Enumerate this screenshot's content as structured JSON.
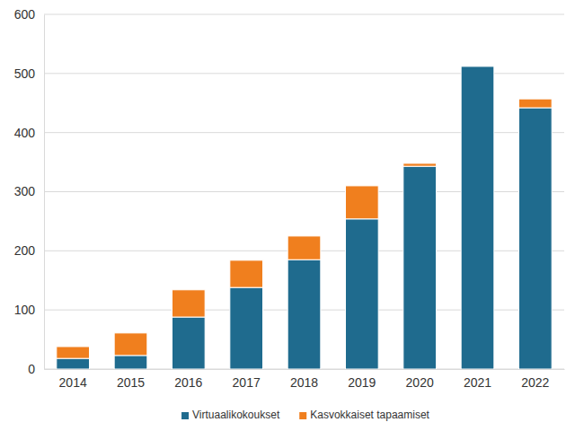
{
  "chart_data": {
    "type": "bar",
    "stacked": true,
    "grid": true,
    "legend": "bottom",
    "categories": [
      "2014",
      "2015",
      "2016",
      "2017",
      "2018",
      "2019",
      "2020",
      "2021",
      "2022"
    ],
    "series": [
      {
        "name": "Virtuaalikokoukset",
        "color": "#1f6b8e",
        "values": [
          18,
          23,
          88,
          138,
          185,
          254,
          343,
          512,
          442
        ]
      },
      {
        "name": "Kasvokkaiset tapaamiset",
        "color": "#f07f1e",
        "values": [
          20,
          38,
          46,
          46,
          40,
          56,
          5,
          0,
          15
        ]
      }
    ],
    "ylim": [
      0,
      600
    ],
    "yticks": [
      0,
      100,
      200,
      300,
      400,
      500,
      600
    ]
  }
}
